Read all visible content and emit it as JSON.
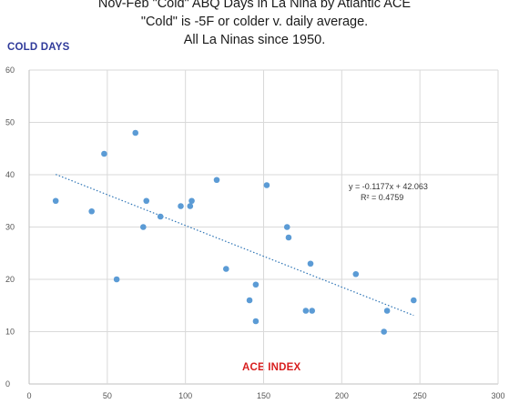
{
  "chart_data": {
    "type": "scatter",
    "title_lines": [
      "Nov-Feb \"Cold\" ABQ Days in La Nina by Atlantic ACE",
      "\"Cold\" is -5F or colder v. daily average.",
      "All La Ninas since 1950."
    ],
    "ylabel": "COLD DAYS",
    "xlabel": "ACE INDEX",
    "xlim": [
      0,
      300
    ],
    "ylim": [
      0,
      60
    ],
    "xticks": [
      0,
      50,
      100,
      150,
      200,
      250,
      300
    ],
    "yticks": [
      0,
      10,
      20,
      30,
      40,
      50,
      60
    ],
    "grid": true,
    "point_color": "#5b9bd5",
    "trendline_color": "#2e75b6",
    "points": [
      {
        "x": 17,
        "y": 35
      },
      {
        "x": 40,
        "y": 33
      },
      {
        "x": 48,
        "y": 44
      },
      {
        "x": 56,
        "y": 20
      },
      {
        "x": 68,
        "y": 48
      },
      {
        "x": 73,
        "y": 30
      },
      {
        "x": 75,
        "y": 35
      },
      {
        "x": 84,
        "y": 32
      },
      {
        "x": 97,
        "y": 34
      },
      {
        "x": 103,
        "y": 34
      },
      {
        "x": 104,
        "y": 35
      },
      {
        "x": 120,
        "y": 39
      },
      {
        "x": 126,
        "y": 22
      },
      {
        "x": 141,
        "y": 16
      },
      {
        "x": 145,
        "y": 19
      },
      {
        "x": 145,
        "y": 12
      },
      {
        "x": 152,
        "y": 38
      },
      {
        "x": 165,
        "y": 30
      },
      {
        "x": 166,
        "y": 28
      },
      {
        "x": 177,
        "y": 14
      },
      {
        "x": 180,
        "y": 23
      },
      {
        "x": 181,
        "y": 14
      },
      {
        "x": 209,
        "y": 21
      },
      {
        "x": 227,
        "y": 10
      },
      {
        "x": 229,
        "y": 14
      },
      {
        "x": 246,
        "y": 16
      }
    ],
    "trendline": {
      "slope": -0.1177,
      "intercept": 42.063,
      "x_range": [
        17,
        246
      ],
      "equation_label": "y = -0.1177x + 42.063",
      "r2_label": "R² = 0.4759"
    }
  }
}
